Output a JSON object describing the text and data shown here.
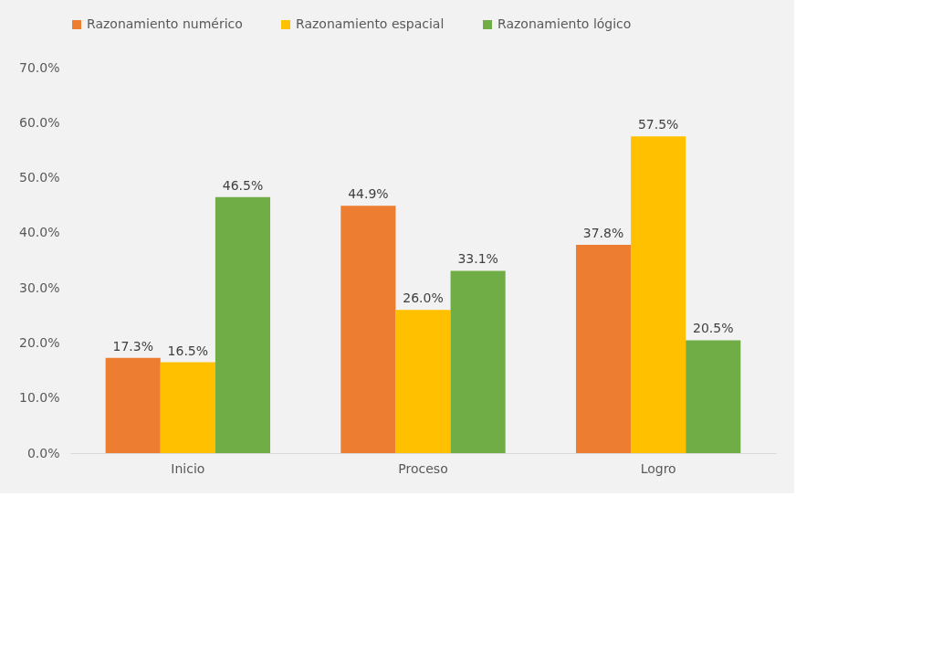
{
  "chart_data": {
    "type": "bar",
    "categories": [
      "Inicio",
      "Proceso",
      "Logro"
    ],
    "series": [
      {
        "name": "Razonamiento numérico",
        "color": "#ed7d31",
        "values": [
          17.3,
          44.9,
          37.8
        ],
        "value_labels": [
          "17.3%",
          "44.9%",
          "37.8%"
        ]
      },
      {
        "name": "Razonamiento espacial",
        "color": "#ffc000",
        "values": [
          16.5,
          26.0,
          57.5
        ],
        "value_labels": [
          "16.5%",
          "26.0%",
          "57.5%"
        ]
      },
      {
        "name": "Razonamiento lógico",
        "color": "#70ad47",
        "values": [
          46.5,
          33.1,
          20.5
        ],
        "value_labels": [
          "46.5%",
          "33.1%",
          "20.5%"
        ]
      }
    ],
    "ylim": [
      0,
      70
    ],
    "yticks": [
      {
        "value": 0,
        "label": "0.0%"
      },
      {
        "value": 10,
        "label": "10.0%"
      },
      {
        "value": 20,
        "label": "20.0%"
      },
      {
        "value": 30,
        "label": "30.0%"
      },
      {
        "value": 40,
        "label": "40.0%"
      },
      {
        "value": 50,
        "label": "50.0%"
      },
      {
        "value": 60,
        "label": "60.0%"
      },
      {
        "value": 70,
        "label": "70.0%"
      }
    ],
    "grid": false,
    "legend": "top left"
  }
}
